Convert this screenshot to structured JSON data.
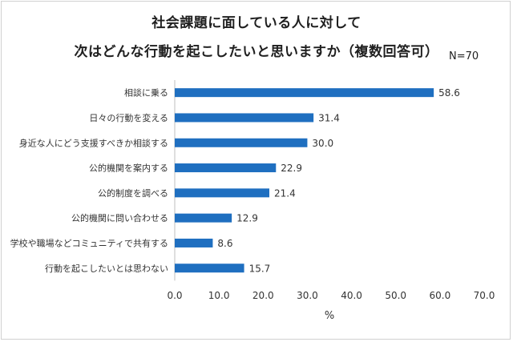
{
  "title": "社会課題に面している人に対して",
  "subtitle": "次はどんな行動を起こしたいと思いますか（複数回答可）",
  "sample_size": "N=70",
  "chart_data": {
    "type": "bar",
    "orientation": "horizontal",
    "categories": [
      "相談に乗る",
      "日々の行動を変える",
      "身近な人にどう支援すべきか相談する",
      "公的機関を案内する",
      "公的制度を調べる",
      "公的機関に問い合わせる",
      "学校や職場などコミュニティで共有する",
      "行動を起こしたいとは思わない"
    ],
    "values": [
      58.6,
      31.4,
      30.0,
      22.9,
      21.4,
      12.9,
      8.6,
      15.7
    ],
    "value_labels": [
      "58.6",
      "31.4",
      "30.0",
      "22.9",
      "21.4",
      "12.9",
      "8.6",
      "15.7"
    ],
    "xticks": [
      "0.0",
      "10.0",
      "20.0",
      "30.0",
      "40.0",
      "50.0",
      "60.0",
      "70.0"
    ],
    "xlim": [
      0,
      70
    ],
    "xlabel": "%",
    "bar_color": "#1f6fc0",
    "grid": false
  }
}
